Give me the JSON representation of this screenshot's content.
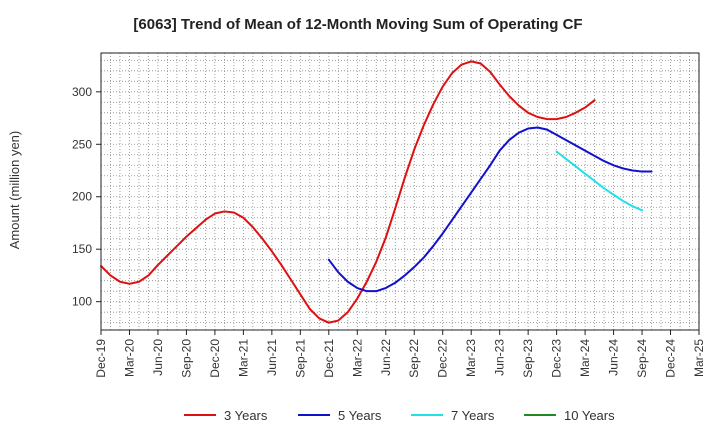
{
  "chart_data": {
    "type": "line",
    "title": "[6063]  Trend of Mean of 12-Month Moving Sum of Operating CF",
    "xlabel": "",
    "ylabel": "Amount (million yen)",
    "ylim": [
      73,
      337
    ],
    "y_ticks": [
      100,
      150,
      200,
      250,
      300
    ],
    "x_tick_labels": [
      "Dec-19",
      "Mar-20",
      "Jun-20",
      "Sep-20",
      "Dec-20",
      "Mar-21",
      "Jun-21",
      "Sep-21",
      "Dec-21",
      "Mar-22",
      "Jun-22",
      "Sep-22",
      "Dec-22",
      "Mar-23",
      "Jun-23",
      "Sep-23",
      "Dec-23",
      "Mar-24",
      "Jun-24",
      "Sep-24",
      "Dec-24",
      "Mar-25"
    ],
    "grid": true,
    "legend_position": "bottom",
    "series": [
      {
        "name": "3 Years",
        "color": "#dd1111",
        "start_index": 0,
        "values": [
          134,
          125,
          119,
          117,
          119,
          125,
          135,
          144,
          153,
          162,
          170,
          178,
          184,
          186,
          185,
          180,
          171,
          160,
          148,
          135,
          121,
          107,
          93,
          84,
          80,
          82,
          90,
          103,
          119,
          138,
          161,
          189,
          218,
          245,
          268,
          288,
          305,
          318,
          326,
          329,
          327,
          319,
          307,
          296,
          287,
          280,
          276,
          274,
          274,
          276,
          280,
          285,
          292
        ]
      },
      {
        "name": "5 Years",
        "color": "#1111cc",
        "start_index": 24,
        "values": [
          140,
          128,
          119,
          113,
          110,
          110,
          113,
          118,
          125,
          133,
          142,
          153,
          165,
          178,
          191,
          204,
          217,
          230,
          244,
          254,
          261,
          265,
          266,
          264,
          259,
          254,
          249,
          244,
          239,
          234,
          230,
          227,
          225,
          224,
          224
        ]
      },
      {
        "name": "7 Years",
        "color": "#22e0e8",
        "start_index": 48,
        "values": [
          243,
          236,
          229,
          222,
          215,
          208,
          202,
          196,
          191,
          187
        ]
      },
      {
        "name": "10 Years",
        "color": "#228822",
        "start_index": 0,
        "values": []
      }
    ]
  }
}
